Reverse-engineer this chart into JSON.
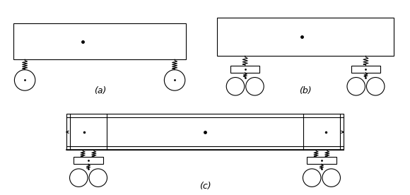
{
  "bg_color": "#ffffff",
  "label_a": "(a)",
  "label_b": "(b)",
  "label_c": "(c)",
  "lw": 0.8
}
